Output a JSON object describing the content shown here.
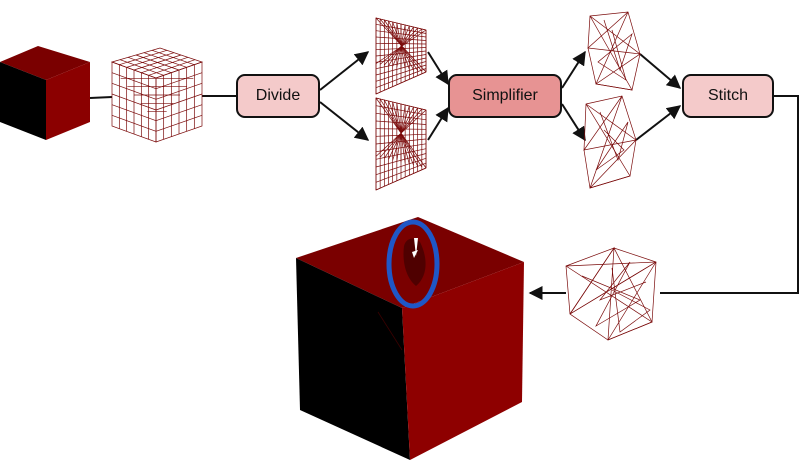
{
  "nodes": {
    "divide": "Divide",
    "simplifier": "Simplifier",
    "stitch": "Stitch"
  },
  "colors": {
    "mesh": "#7a0a0a",
    "cube_top": "#7a0000",
    "cube_right": "#8e0000",
    "cube_left": "#000000",
    "node_light": "#f4caca",
    "node_strong": "#e79393",
    "highlight_ring": "#1f57c7"
  }
}
